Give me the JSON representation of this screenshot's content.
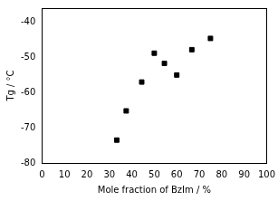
{
  "chart_data": {
    "type": "scatter",
    "x_label": "Mole fraction of BzIm / %",
    "y_label": "Tg / °C",
    "x": [
      33.3,
      37.5,
      44.4,
      50,
      54.5,
      60,
      66.7,
      75
    ],
    "values": [
      -73.5,
      -65.2,
      -57,
      -48.8,
      -51.7,
      -55,
      -47.8,
      -44.6
    ],
    "color": "#000000",
    "marker": "square",
    "xlim": [
      0,
      100
    ],
    "xticks": [
      0,
      10,
      20,
      30,
      40,
      50,
      60,
      70,
      80,
      90,
      100
    ],
    "ylim": [
      -80,
      -36
    ],
    "yticks": [
      -80,
      -70,
      -60,
      -50,
      -40
    ],
    "grid": false
  }
}
